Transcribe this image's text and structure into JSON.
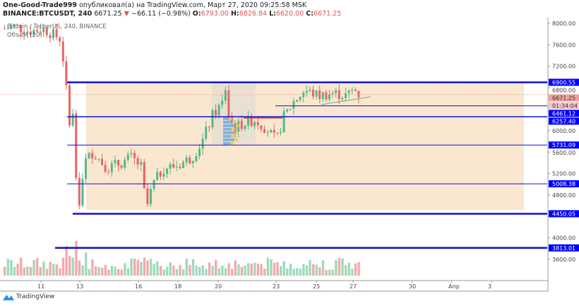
{
  "header": {
    "author": "One-Good-Trade999",
    "published": "опубликовал(а) на TradingView.com, Март 27, 2020 09:25:58 MSK",
    "symbol": "BINANCE:BTCUSDT, 240",
    "last": "6671.25",
    "change": "−66.11 (−0.98%)",
    "o_label": "O:",
    "o": "6793.00",
    "h_label": "H:",
    "h": "6826.84",
    "l_label": "L:",
    "l": "6620.00",
    "c_label": "C:",
    "c": "6671.25"
  },
  "legend": {
    "series": "Bitcoin / TetherUS, 240, BINANCE",
    "volume": "Объём (20)"
  },
  "price_axis": {
    "ticks": [
      "8000.00",
      "7600.00",
      "7200.00",
      "6800.00",
      "6000.00",
      "5600.00",
      "5200.00",
      "4800.00",
      "4000.00",
      "3600.00"
    ],
    "tick_values": [
      8000,
      7600,
      7200,
      6800,
      6000,
      5600,
      5200,
      4800,
      4000,
      3600
    ],
    "levels": [
      {
        "label": "6900.55",
        "value": 6900.55,
        "weight": "thick"
      },
      {
        "label": "6461.12",
        "value": 6461.12,
        "weight": "thin"
      },
      {
        "label": "6257.40",
        "value": 6257.4,
        "weight": "medium"
      },
      {
        "label": "5731.09",
        "value": 5731.09,
        "weight": "thin"
      },
      {
        "label": "5008.38",
        "value": 5008.38,
        "weight": "thin"
      },
      {
        "label": "4450.05",
        "value": 4450.05,
        "weight": "thick"
      },
      {
        "label": "3813.01",
        "value": 3813.01,
        "weight": "thick"
      }
    ],
    "last_price": "6671.25",
    "countdown": "01:34:04"
  },
  "time_axis": {
    "ticks": [
      "11",
      "13",
      "16",
      "18",
      "20",
      "23",
      "25",
      "27",
      "30",
      "Апр",
      "3"
    ]
  },
  "colors": {
    "up": "#53b987",
    "down": "#eb6464",
    "level": "#1010d0",
    "box": "#f8e3c8",
    "label_bg": "#0000ff",
    "last_bg": "#f0a0a0"
  },
  "chart_data": {
    "type": "candlestick",
    "ylim": [
      3400,
      8100
    ],
    "price_path": [
      7900,
      7950,
      7850,
      7900,
      7700,
      6800,
      6200,
      6300,
      4500,
      4700,
      5400,
      5600,
      5300,
      5400,
      5500,
      5300,
      4500,
      5000,
      5300,
      5350,
      5500,
      5800,
      6300,
      6500,
      6800,
      6300,
      6050,
      6150,
      6200,
      6050,
      5800,
      6250,
      6550,
      6750,
      6650,
      6700,
      6650,
      6780,
      6671.25
    ]
  },
  "footer": {
    "brand": "TradingView"
  }
}
